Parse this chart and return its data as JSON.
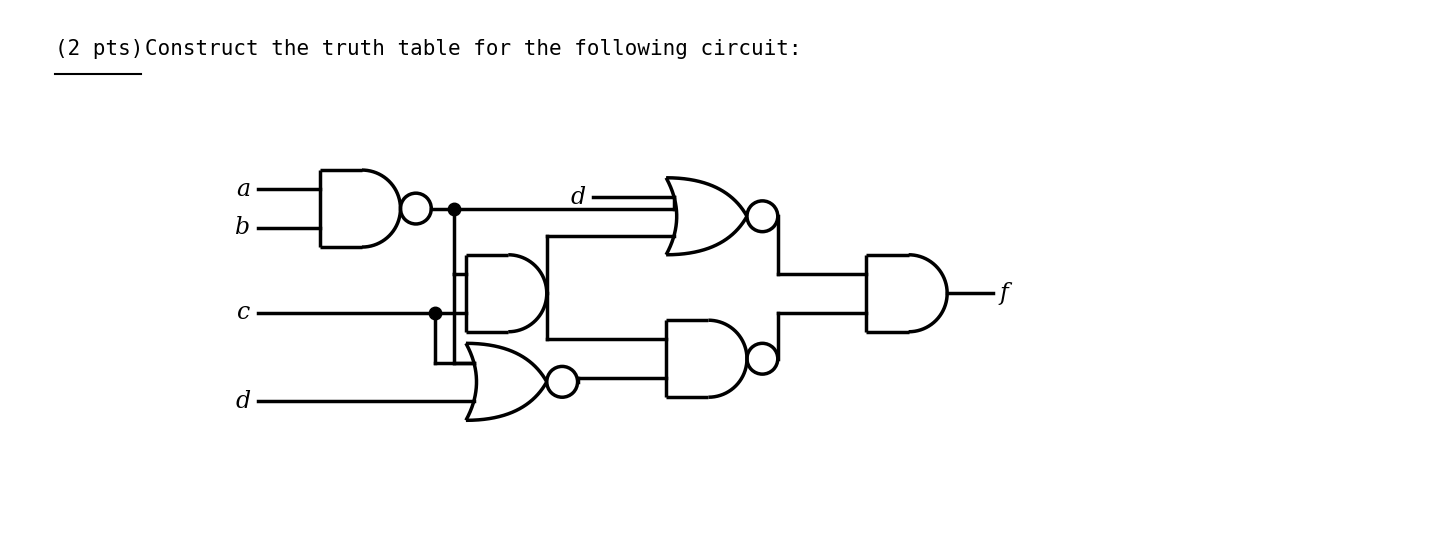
{
  "bg_color": "#ffffff",
  "gate_color": "#000000",
  "line_color": "#000000",
  "line_width": 2.5,
  "bubble_r": 0.013,
  "title_pts": "(2 pts)",
  "title_rest": "Construct the truth table for the following circuit:",
  "label_a": "a",
  "label_b": "b",
  "label_c": "c",
  "label_d": "d",
  "label_f": "f",
  "label_fontsize": 17,
  "title_fontsize": 15
}
